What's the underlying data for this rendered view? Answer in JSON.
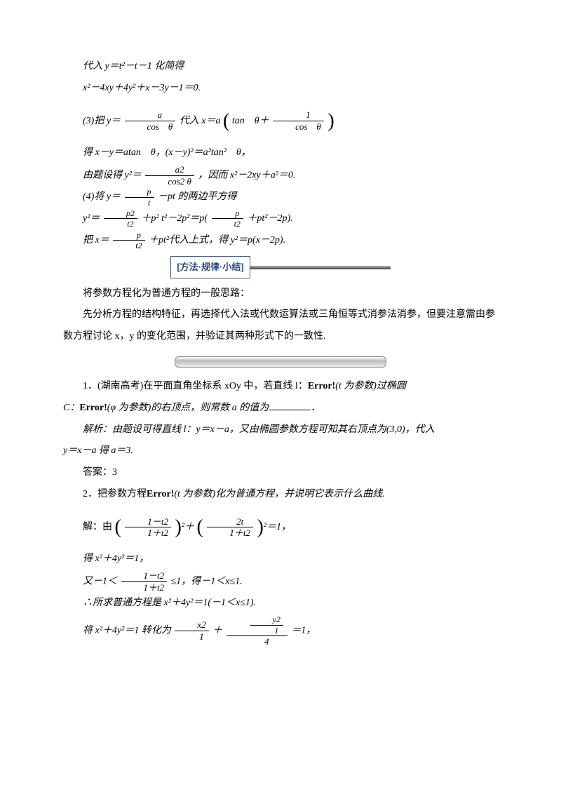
{
  "p1": "代入 y＝t²－t－1 化简得",
  "p2": "x²－4xy＋4y²＋x－3y－1＝0.",
  "p3_a": "(3)把 y＝",
  "p3_frac_num": "a",
  "p3_frac_den": "cos　θ",
  "p3_b": "代入 x＝a",
  "p3_c": "tan　θ＋",
  "p3_frac2_num": "1",
  "p3_frac2_den": "cos　θ",
  "p4": "得 x－y＝atan　θ，(x－y)²＝a²tan²　θ，",
  "p5_a": "由题设得 y²＝",
  "p5_frac_num": "a2",
  "p5_frac_den": "cos2 θ",
  "p5_b": "，因而 x²－2xy＋a²＝0.",
  "p6_a": "(4)将 y＝",
  "p6_frac_num": "p",
  "p6_frac_den": "t",
  "p6_b": "－pt 的两边平方得",
  "p7_a": "y²＝",
  "p7_f1_num": "p2",
  "p7_f1_den": "t2",
  "p7_b": "＋p² t²－2p²＝p(",
  "p7_f2_num": "p",
  "p7_f2_den": "t2",
  "p7_c": "＋pt²－2p).",
  "p8_a": "把 x＝",
  "p8_f_num": "p",
  "p8_f_den": "t2",
  "p8_b": "＋pt²代入上式，得 y²＝p(x－2p).",
  "method_label": "[方法·规律·小结]",
  "m1": "将参数方程化为普通方程的一般思路：",
  "m2": "先分析方程的结构特征，再选择代入法或代数运算法或三角恒等式消参法消参，但要注意需由参数方程讨论 x，y 的变化范围，并验证其两种形式下的一致性.",
  "q1_a": "1．(湖南高考)在平面直角坐标系 xOy 中，若直线 l：",
  "q1_err": "Error!",
  "q1_b": "(t 为参数)过椭圆",
  "q1_c": "C：",
  "q1_d": "(φ 为参数)的右顶点，则常数 a 的值为",
  "q1_dot": "．",
  "q1_ans_a": "解析：由题设可得直线 l：y＝x－a，又由椭圆参数方程可知其右顶点为(3,0)，代入",
  "q1_ans_b": "y＝x－a 得 a＝3.",
  "q1_ans_label": "答案：3",
  "q2_a": "2．把参数方程",
  "q2_b": "(t 为参数)化为普通方程，并说明它表示什么曲线.",
  "q2_sol_a": "解：由",
  "q2_f1_num": "1－t2",
  "q2_f1_den": "1＋t2",
  "q2_mid": "²＋",
  "q2_f2_num": "2t",
  "q2_f2_den": "1＋t2",
  "q2_sol_b": "²＝1，",
  "q2_p1": "得 x²＋4y²＝1，",
  "q2_p2_a": "又－1＜",
  "q2_p2_f_num": "1－t2",
  "q2_p2_f_den": "1＋t2",
  "q2_p2_b": "≤1，得－1＜x≤1.",
  "q2_p3": "∴所求普通方程是 x²＋4y²＝1(－1＜x≤1).",
  "q2_p4_a": "将 x²＋4y²＝1 转化为",
  "q2_p4_f1_num": "x2",
  "q2_p4_f1_den": "1",
  "q2_p4_plus": "＋",
  "q2_p4_f2_inner_num": "y2",
  "q2_p4_f2_inner_den": "1",
  "q2_p4_f2_outer_den": "4",
  "q2_p4_b": "＝1，"
}
